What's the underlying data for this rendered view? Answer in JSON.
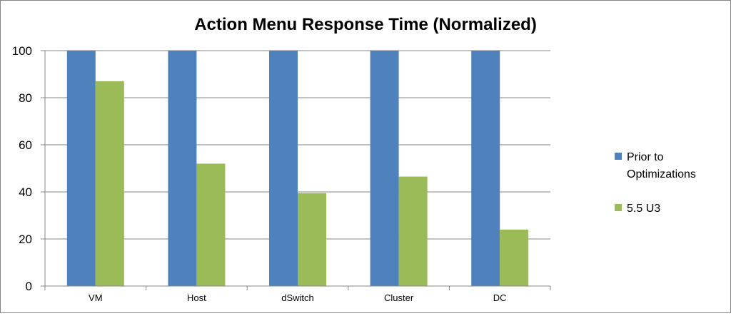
{
  "chart_data": {
    "type": "bar",
    "title": "Action Menu Response Time (Normalized)",
    "xlabel": "",
    "ylabel": "",
    "ylim": [
      0,
      100
    ],
    "yticks": [
      0,
      20,
      40,
      60,
      80,
      100
    ],
    "grid": "horizontal",
    "legend_position": "right",
    "categories": [
      "VM",
      "Host",
      "dSwitch",
      "Cluster",
      "DC"
    ],
    "series": [
      {
        "name": "Prior to Optimizations",
        "legend_lines": [
          "Prior to",
          "Optimizations"
        ],
        "color": "#4F81BD",
        "values": [
          100,
          100,
          100,
          100,
          100
        ]
      },
      {
        "name": "5.5 U3",
        "legend_lines": [
          "5.5 U3"
        ],
        "color": "#9BBB59",
        "values": [
          87,
          52,
          39.5,
          46.5,
          24
        ]
      }
    ]
  }
}
